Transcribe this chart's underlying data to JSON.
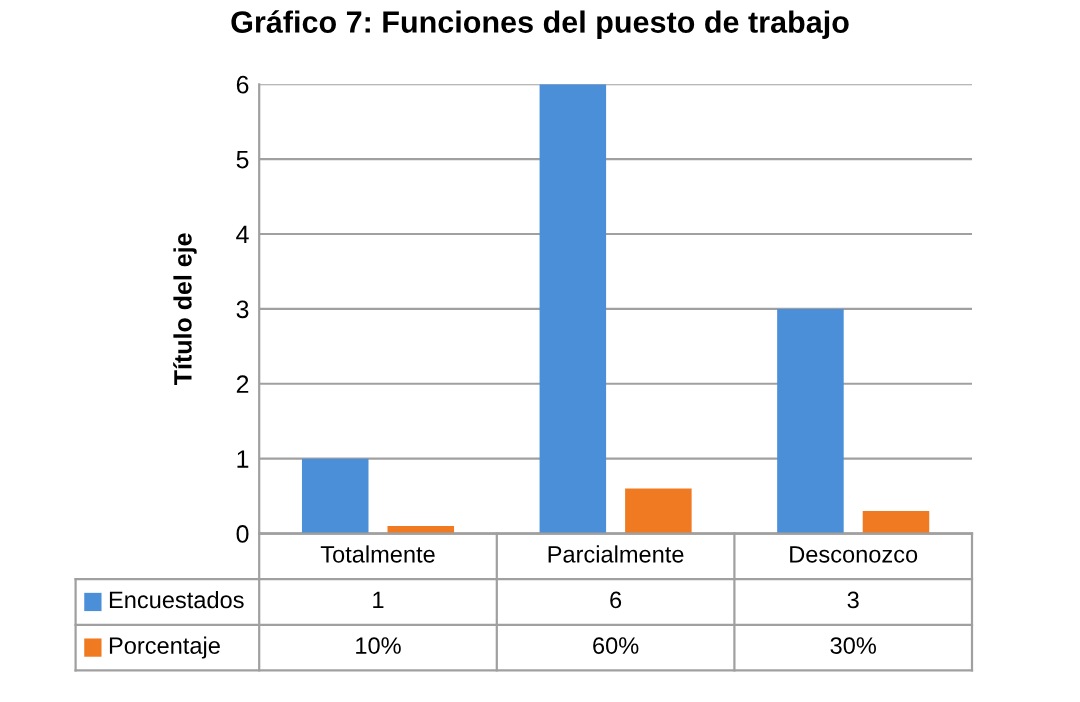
{
  "chart_data": {
    "type": "bar",
    "title": "Gráfico 7: Funciones del puesto de trabajo",
    "ylabel": "Título del eje",
    "categories": [
      "Totalmente",
      "Parcialmente",
      "Desconozco"
    ],
    "series": [
      {
        "name": "Encuestados",
        "color": "#4a8fd8",
        "values": [
          1,
          6,
          3
        ],
        "value_labels": [
          "1",
          "6",
          "3"
        ]
      },
      {
        "name": "Porcentaje",
        "color": "#f07a22",
        "values": [
          0.1,
          0.6,
          0.3
        ],
        "value_labels": [
          "10%",
          "60%",
          "30%"
        ]
      }
    ],
    "ylim": [
      0,
      6
    ],
    "yticks": [
      0,
      1,
      2,
      3,
      4,
      5,
      6
    ],
    "grid": "y",
    "legend": "bottom"
  }
}
